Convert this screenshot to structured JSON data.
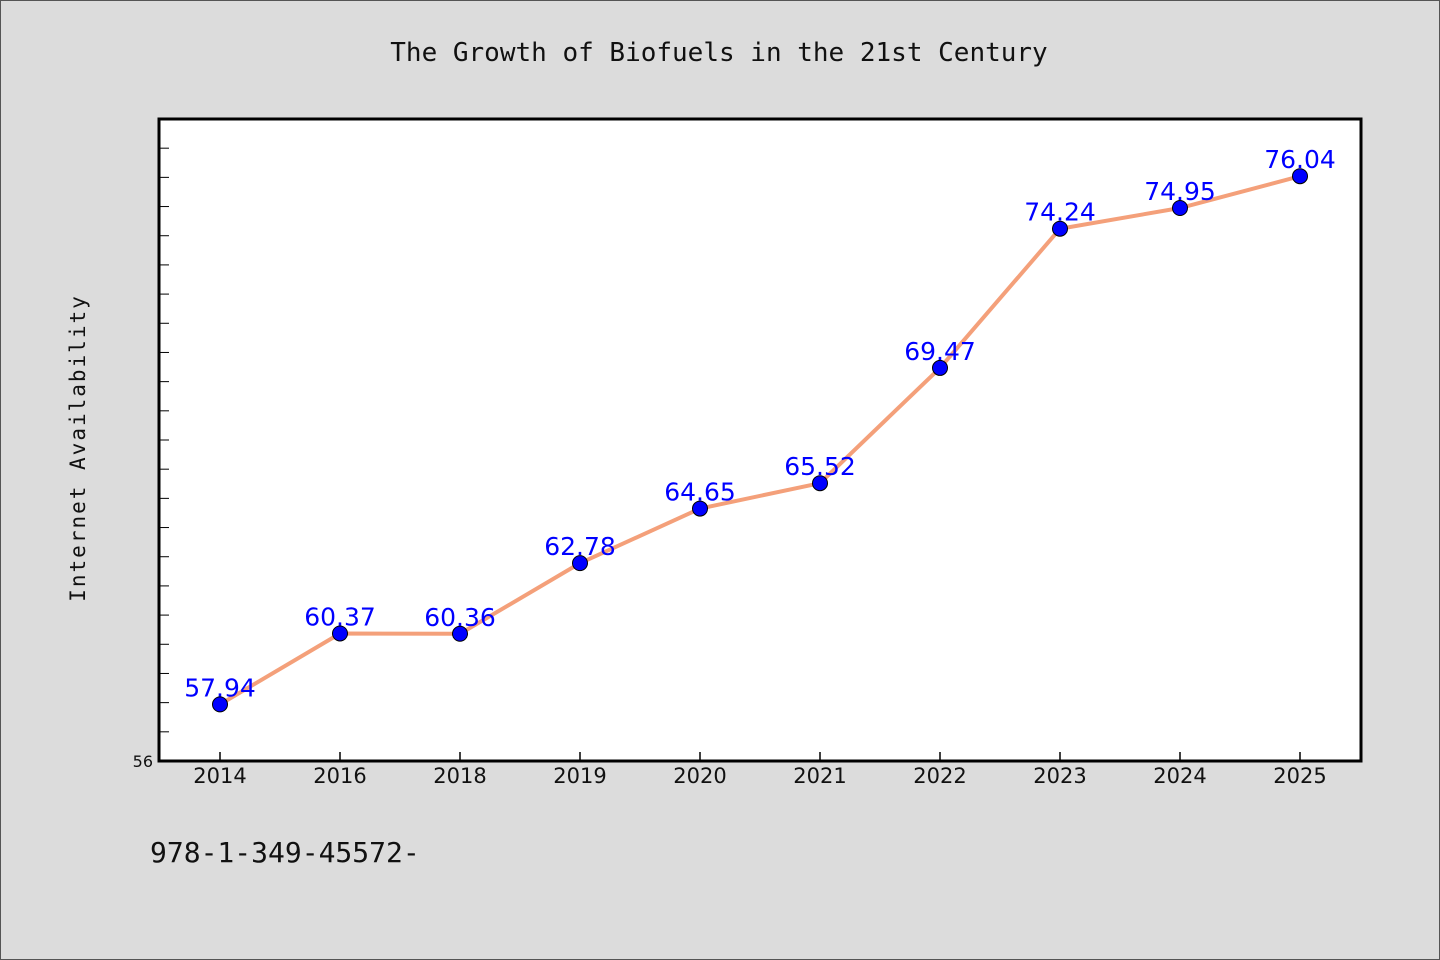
{
  "chart_data": {
    "type": "line",
    "title": "The Growth of Biofuels in the 21st Century",
    "xlabel": "",
    "ylabel": "Internet Availability",
    "categories": [
      "2014",
      "2016",
      "2018",
      "2019",
      "2020",
      "2021",
      "2022",
      "2023",
      "2024",
      "2025"
    ],
    "series": [
      {
        "values": [
          57.94,
          60.37,
          60.36,
          62.78,
          64.65,
          65.52,
          69.47,
          74.24,
          74.95,
          76.04
        ],
        "line_color": "#f4a07a",
        "marker_color": "#0000ff",
        "label_color": "#0000ff"
      }
    ],
    "ylim": [
      56,
      78
    ],
    "y_tick_labels": [
      "56"
    ],
    "grid": false,
    "legend": "none",
    "plot_background": "#ffffff",
    "figure_background": "#dcdcdc"
  },
  "footer": {
    "text": "978-1-349-45572-"
  }
}
